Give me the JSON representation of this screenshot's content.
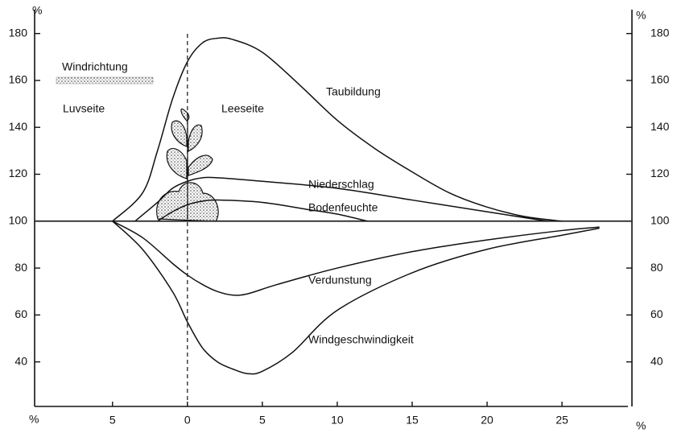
{
  "chart_data": {
    "type": "line",
    "ylabel": "%",
    "y2label": "%",
    "xlabel": "%",
    "origin_label": "%",
    "annotations": [
      "Windrichtung",
      "Luvseite",
      "Leeseite"
    ],
    "xlim": [
      -10.2,
      29.4
    ],
    "xticks": [
      {
        "value": -5,
        "label": "5"
      },
      0,
      5,
      10,
      15,
      20,
      25
    ],
    "ylim": [
      21,
      184
    ],
    "yticks": [
      40,
      60,
      80,
      100,
      120,
      140,
      160,
      180
    ],
    "y2lim": [
      21,
      184
    ],
    "y2ticks": [
      40,
      60,
      80,
      100,
      120,
      140,
      160,
      180
    ],
    "baseline": 100,
    "divider_x": 0,
    "series": [
      {
        "name": "Taubildung",
        "color": "#111111",
        "x": [
          -5,
          -3,
          -2,
          -1,
          0,
          1,
          2,
          3,
          5,
          7.5,
          10,
          12.5,
          15,
          17.5,
          20,
          22.5,
          25
        ],
        "values": [
          100,
          112,
          130,
          152,
          168,
          176,
          178,
          177.5,
          172,
          158,
          143,
          131,
          121,
          112,
          106,
          102,
          100
        ]
      },
      {
        "name": "Niederschlag",
        "color": "#111111",
        "x": [
          -3.5,
          -2,
          -1,
          0,
          1,
          2,
          5,
          10,
          15,
          20,
          24
        ],
        "values": [
          100,
          108,
          114,
          117,
          118.5,
          118.5,
          117,
          114,
          109,
          104,
          100
        ]
      },
      {
        "name": "Bodenfeuchte",
        "color": "#111111",
        "x": [
          -2,
          -1,
          0,
          1,
          2,
          5,
          8,
          10,
          12
        ],
        "values": [
          100,
          104,
          107,
          108.5,
          109,
          108,
          105,
          103,
          100
        ]
      },
      {
        "name": "Verdunstung",
        "color": "#111111",
        "x": [
          -5,
          -3,
          -1,
          0,
          1,
          2,
          3,
          4,
          6,
          10,
          15,
          20,
          25,
          27.5
        ],
        "values": [
          100,
          93,
          82,
          77,
          73,
          70,
          68.5,
          69,
          73,
          80,
          87,
          92,
          96,
          97.5
        ]
      },
      {
        "name": "Windgeschwindigkeit",
        "color": "#111111",
        "x": [
          -5,
          -3,
          -1,
          0,
          1,
          2,
          3,
          4,
          5,
          7,
          10,
          15,
          20,
          25,
          27.5
        ],
        "values": [
          100,
          88,
          70,
          57,
          46,
          40,
          37,
          35,
          36,
          44,
          62,
          78,
          88,
          94,
          97
        ]
      }
    ]
  }
}
